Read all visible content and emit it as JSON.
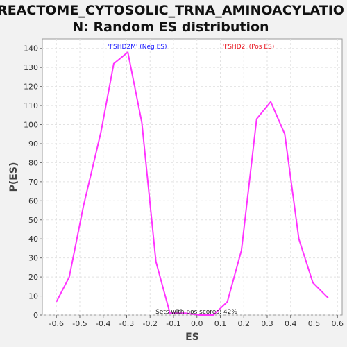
{
  "chart_data": {
    "type": "line",
    "title_lines": [
      "REACTOME_CYTOSOLIC_TRNA_AMINOACYLATIO",
      "N: Random ES distribution"
    ],
    "xlabel": "ES",
    "ylabel": "P(ES)",
    "xlim": [
      -0.66,
      0.62
    ],
    "ylim": [
      0,
      145
    ],
    "xticks": [
      "-0.6",
      "-0.5",
      "-0.4",
      "-0.3",
      "-0.2",
      "-0.1",
      "0.0",
      "0.1",
      "0.2",
      "0.3",
      "0.4",
      "0.5",
      "0.6"
    ],
    "yticks": [
      "0",
      "10",
      "20",
      "30",
      "40",
      "50",
      "60",
      "70",
      "80",
      "90",
      "100",
      "110",
      "120",
      "130",
      "140"
    ],
    "grid": true,
    "series": [
      {
        "color": "#ff33ff",
        "points": [
          [
            -0.6,
            7
          ],
          [
            -0.545,
            20
          ],
          [
            -0.485,
            57
          ],
          [
            -0.41,
            96
          ],
          [
            -0.355,
            132
          ],
          [
            -0.295,
            138
          ],
          [
            -0.235,
            101
          ],
          [
            -0.175,
            28
          ],
          [
            -0.115,
            1
          ],
          [
            -0.05,
            1
          ],
          [
            0.01,
            0
          ],
          [
            0.07,
            0
          ],
          [
            0.13,
            7
          ],
          [
            0.19,
            34
          ],
          [
            0.255,
            103
          ],
          [
            0.315,
            112
          ],
          [
            0.375,
            95
          ],
          [
            0.435,
            40
          ],
          [
            0.495,
            17
          ],
          [
            0.56,
            9
          ]
        ]
      }
    ],
    "annotations": {
      "neg_label": "'FSHD2M' (Neg ES)",
      "neg_color": "#1a1aff",
      "pos_label": "'FSHD2' (Pos ES)",
      "pos_color": "#e8141e",
      "footnote": "Sets with pos scores: 42%"
    }
  }
}
